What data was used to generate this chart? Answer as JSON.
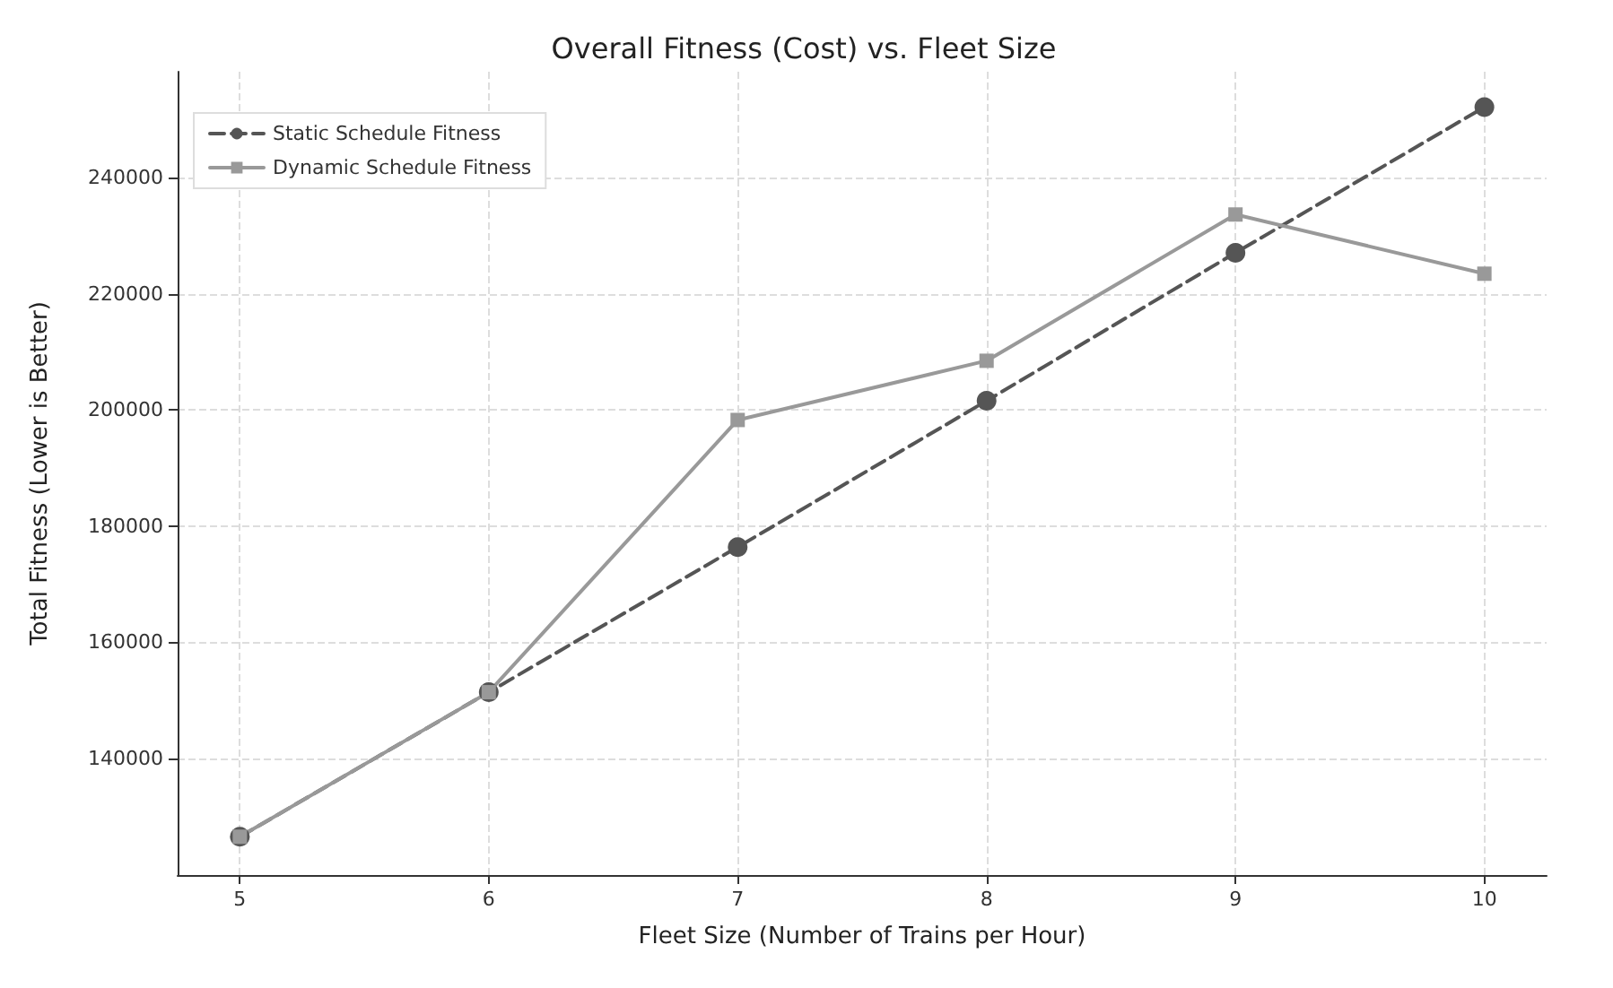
{
  "chart_data": {
    "type": "line",
    "title": "Overall Fitness (Cost) vs. Fleet Size",
    "xlabel": "Fleet Size (Number of Trains per Hour)",
    "ylabel": "Total Fitness (Lower is Better)",
    "x": [
      5,
      6,
      7,
      8,
      9,
      10
    ],
    "series": [
      {
        "name": "Static Schedule Fitness",
        "color": "#555555",
        "marker": "circle",
        "line_style": "dashed",
        "values": [
          126500,
          151400,
          176400,
          201600,
          227100,
          252200
        ]
      },
      {
        "name": "Dynamic Schedule Fitness",
        "color": "#999999",
        "marker": "square",
        "line_style": "solid",
        "values": [
          126500,
          151400,
          198300,
          208500,
          233700,
          223500
        ]
      }
    ],
    "xlim": [
      4.75,
      10.25
    ],
    "xticks": [
      5,
      6,
      7,
      8,
      9,
      10
    ],
    "ylim": [
      119900,
      258300
    ],
    "yticks": [
      140000,
      160000,
      180000,
      200000,
      220000,
      240000
    ],
    "grid": true,
    "legend": "top left"
  }
}
